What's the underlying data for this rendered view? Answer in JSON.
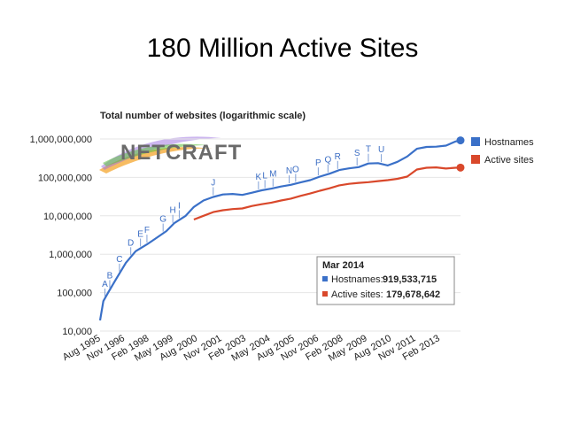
{
  "slide": {
    "title": "180 Million Active Sites"
  },
  "logo": {
    "text": "NETCRAFT"
  },
  "colors": {
    "hostnames": "#3a70c8",
    "active": "#d9482b",
    "logo_swoosh": [
      "#e33",
      "#f90",
      "#ee3",
      "#6c3",
      "#39f",
      "#96f"
    ]
  },
  "chart_data": {
    "type": "line",
    "title": "Total number of websites (logarithmic scale)",
    "y_scale": "log",
    "ylim": [
      10000,
      1000000000
    ],
    "y_ticks": [
      {
        "v": 1000000000,
        "label": "1,000,000,000"
      },
      {
        "v": 100000000,
        "label": "100,000,000"
      },
      {
        "v": 10000000,
        "label": "10,000,000"
      },
      {
        "v": 1000000,
        "label": "1,000,000"
      },
      {
        "v": 100000,
        "label": "100,000"
      },
      {
        "v": 10000,
        "label": "10,000"
      }
    ],
    "x_ticks": [
      "Aug 1995",
      "Nov 1996",
      "Feb 1998",
      "May 1999",
      "Aug 2000",
      "Nov 2001",
      "Feb 2003",
      "May 2004",
      "Aug 2005",
      "Nov 2006",
      "Feb 2008",
      "May 2009",
      "Aug 2010",
      "Nov 2011",
      "Feb 2013"
    ],
    "xlim": [
      "1995-08",
      "2014-03"
    ],
    "legend_position": "right",
    "series": [
      {
        "name": "Hostnames",
        "color": "#3a70c8",
        "points": [
          [
            "1995-08",
            18957
          ],
          [
            "1995-10",
            60000
          ],
          [
            "1996-01",
            100000
          ],
          [
            "1996-06",
            230000
          ],
          [
            "1996-12",
            600000
          ],
          [
            "1997-06",
            1200000
          ],
          [
            "1998-01",
            1800000
          ],
          [
            "1998-06",
            2500000
          ],
          [
            "1999-01",
            4000000
          ],
          [
            "1999-06",
            6500000
          ],
          [
            "2000-01",
            10000000
          ],
          [
            "2000-06",
            17000000
          ],
          [
            "2000-12",
            25000000
          ],
          [
            "2001-06",
            31000000
          ],
          [
            "2001-12",
            36000000
          ],
          [
            "2002-06",
            37000000
          ],
          [
            "2002-12",
            35000000
          ],
          [
            "2003-06",
            40000000
          ],
          [
            "2003-12",
            46000000
          ],
          [
            "2004-06",
            51000000
          ],
          [
            "2004-12",
            58000000
          ],
          [
            "2005-06",
            64000000
          ],
          [
            "2005-12",
            74000000
          ],
          [
            "2006-06",
            85000000
          ],
          [
            "2006-12",
            105000000
          ],
          [
            "2007-06",
            125000000
          ],
          [
            "2007-12",
            155000000
          ],
          [
            "2008-06",
            172000000
          ],
          [
            "2008-12",
            185000000
          ],
          [
            "2009-06",
            230000000
          ],
          [
            "2009-12",
            235000000
          ],
          [
            "2010-06",
            205000000
          ],
          [
            "2010-12",
            255000000
          ],
          [
            "2011-06",
            350000000
          ],
          [
            "2011-12",
            555000000
          ],
          [
            "2012-06",
            620000000
          ],
          [
            "2012-12",
            630000000
          ],
          [
            "2013-06",
            670000000
          ],
          [
            "2013-12",
            860000000
          ],
          [
            "2014-03",
            919533715
          ]
        ]
      },
      {
        "name": "Active sites",
        "color": "#d9482b",
        "points": [
          [
            "2000-06",
            8000000
          ],
          [
            "2000-12",
            10000000
          ],
          [
            "2001-06",
            12500000
          ],
          [
            "2001-12",
            14000000
          ],
          [
            "2002-06",
            15000000
          ],
          [
            "2002-12",
            15500000
          ],
          [
            "2003-06",
            18000000
          ],
          [
            "2003-12",
            20000000
          ],
          [
            "2004-06",
            22000000
          ],
          [
            "2004-12",
            25000000
          ],
          [
            "2005-06",
            28000000
          ],
          [
            "2005-12",
            33000000
          ],
          [
            "2006-06",
            38000000
          ],
          [
            "2006-12",
            45000000
          ],
          [
            "2007-06",
            52000000
          ],
          [
            "2007-12",
            62000000
          ],
          [
            "2008-06",
            68000000
          ],
          [
            "2008-12",
            72000000
          ],
          [
            "2009-06",
            75000000
          ],
          [
            "2009-12",
            80000000
          ],
          [
            "2010-06",
            85000000
          ],
          [
            "2010-12",
            92000000
          ],
          [
            "2011-06",
            105000000
          ],
          [
            "2011-12",
            160000000
          ],
          [
            "2012-06",
            178000000
          ],
          [
            "2012-12",
            182000000
          ],
          [
            "2013-06",
            170000000
          ],
          [
            "2013-12",
            178000000
          ],
          [
            "2014-03",
            179678642
          ]
        ]
      }
    ],
    "annotations": [
      {
        "label": "A",
        "date": "1995-11"
      },
      {
        "label": "B",
        "date": "1996-02"
      },
      {
        "label": "C",
        "date": "1996-08"
      },
      {
        "label": "D",
        "date": "1997-03"
      },
      {
        "label": "E",
        "date": "1997-09"
      },
      {
        "label": "F",
        "date": "1998-01"
      },
      {
        "label": "G",
        "date": "1998-11"
      },
      {
        "label": "H",
        "date": "1999-05"
      },
      {
        "label": "I",
        "date": "1999-09"
      },
      {
        "label": "J",
        "date": "2001-06"
      },
      {
        "label": "K",
        "date": "2003-10"
      },
      {
        "label": "L",
        "date": "2004-02"
      },
      {
        "label": "M",
        "date": "2004-07"
      },
      {
        "label": "N",
        "date": "2005-05"
      },
      {
        "label": "O",
        "date": "2005-09"
      },
      {
        "label": "P",
        "date": "2006-11"
      },
      {
        "label": "Q",
        "date": "2007-05"
      },
      {
        "label": "R",
        "date": "2007-11"
      },
      {
        "label": "S",
        "date": "2008-11"
      },
      {
        "label": "T",
        "date": "2009-06"
      },
      {
        "label": "U",
        "date": "2010-02"
      }
    ],
    "info_box": {
      "heading": "Mar 2014",
      "rows": [
        {
          "label": "Hostnames:",
          "value": "919,533,715",
          "color": "#3a70c8"
        },
        {
          "label": "Active sites:",
          "value": "179,678,642",
          "color": "#d9482b"
        }
      ]
    }
  }
}
